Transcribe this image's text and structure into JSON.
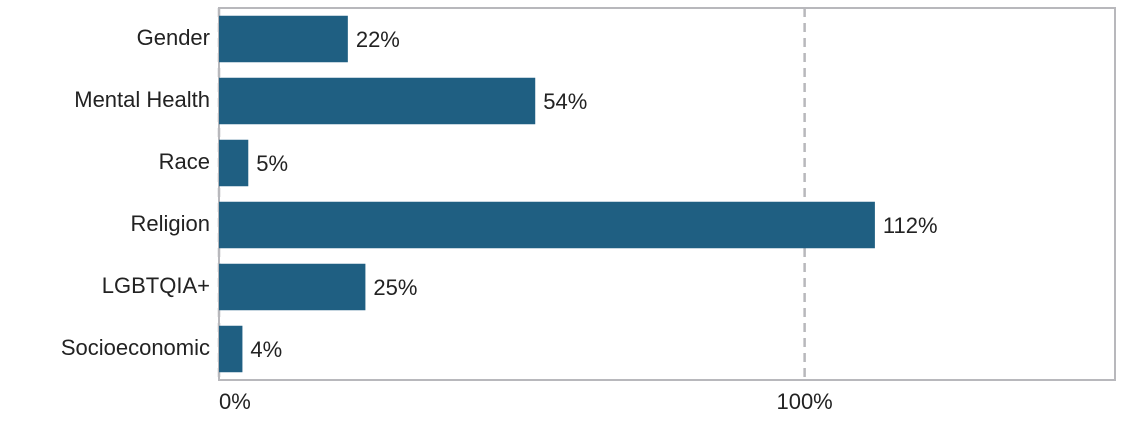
{
  "chart_data": {
    "type": "bar",
    "orientation": "horizontal",
    "categories": [
      "Gender",
      "Mental Health",
      "Race",
      "Religion",
      "LGBTQIA+",
      "Socioeconomic"
    ],
    "values": [
      22,
      54,
      5,
      112,
      25,
      4
    ],
    "value_labels": [
      "22%",
      "54%",
      "5%",
      "112%",
      "25%",
      "4%"
    ],
    "color": "#1f5f82",
    "xlim": [
      0,
      153
    ],
    "xticks": [
      {
        "value": 0,
        "label": "0%"
      },
      {
        "value": 100,
        "label": "100%"
      }
    ],
    "grid": true
  }
}
